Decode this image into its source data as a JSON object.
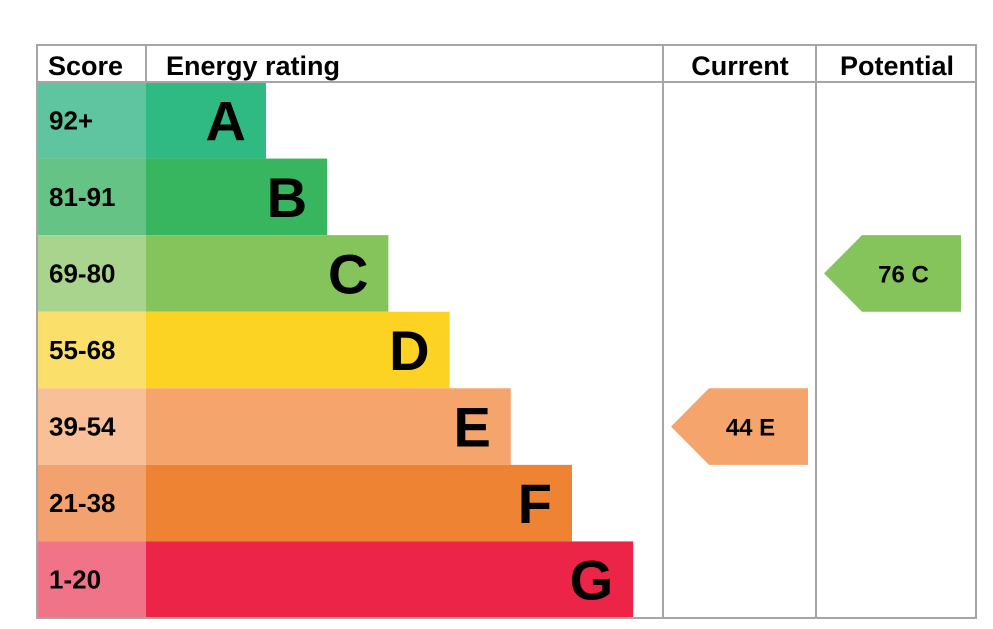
{
  "chart_data": {
    "type": "bar",
    "headers": {
      "score": "Score",
      "rating": "Energy rating",
      "current": "Current",
      "potential": "Potential"
    },
    "bands": [
      {
        "letter": "A",
        "range": "92+",
        "color": "#2fb983",
        "light": "#5fc5a0"
      },
      {
        "letter": "B",
        "range": "81-91",
        "color": "#37b65f",
        "light": "#66c386"
      },
      {
        "letter": "C",
        "range": "69-80",
        "color": "#85c45a",
        "light": "#a9d48d"
      },
      {
        "letter": "D",
        "range": "55-68",
        "color": "#fcd322",
        "light": "#fae06b"
      },
      {
        "letter": "E",
        "range": "39-54",
        "color": "#f5a56c",
        "light": "#f9bf96"
      },
      {
        "letter": "F",
        "range": "21-38",
        "color": "#ef8334",
        "light": "#f3a26f"
      },
      {
        "letter": "G",
        "range": "1-20",
        "color": "#ec2447",
        "light": "#f17387"
      }
    ],
    "current": {
      "value": 44,
      "band": "E",
      "label": "44  E"
    },
    "potential": {
      "value": 76,
      "band": "C",
      "label": "76  C"
    }
  }
}
